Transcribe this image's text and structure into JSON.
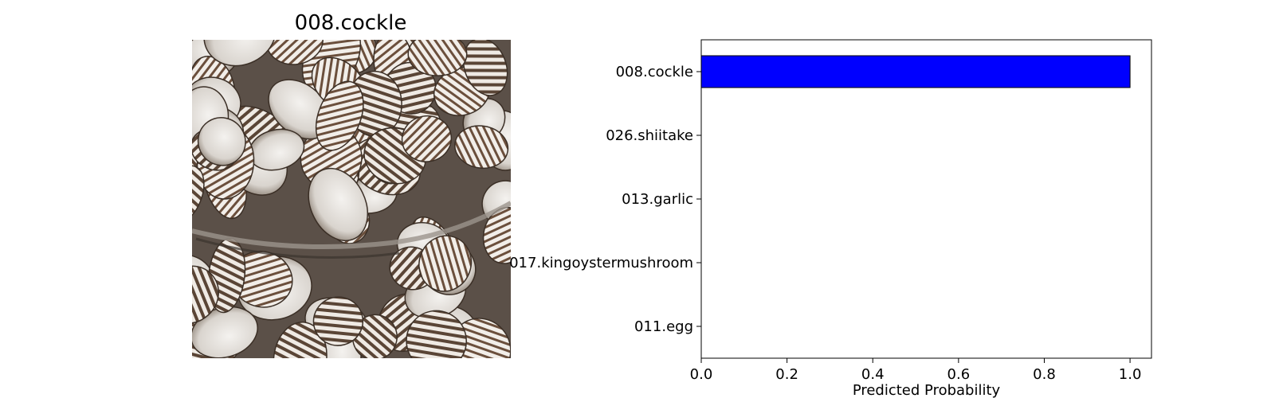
{
  "image_panel": {
    "title": "008.cockle",
    "subject": "pile of cockle shells (photo)"
  },
  "colors": {
    "bar_fill": "#0000ff",
    "bar_edge": "#000000",
    "axes": "#000000",
    "background": "#ffffff"
  },
  "chart_data": {
    "type": "bar",
    "orientation": "horizontal",
    "categories": [
      "008.cockle",
      "026.shiitake",
      "013.garlic",
      "017.kingoystermushroom",
      "011.egg"
    ],
    "values": [
      1.0,
      0.0,
      0.0,
      0.0,
      0.0
    ],
    "xlabel": "Predicted Probability",
    "ylabel": "",
    "xlim": [
      0.0,
      1.05
    ],
    "xticks": [
      0.0,
      0.2,
      0.4,
      0.6,
      0.8,
      1.0
    ],
    "xtick_labels": [
      "0.0",
      "0.2",
      "0.4",
      "0.6",
      "0.8",
      "1.0"
    ],
    "grid": false,
    "legend": "none"
  }
}
